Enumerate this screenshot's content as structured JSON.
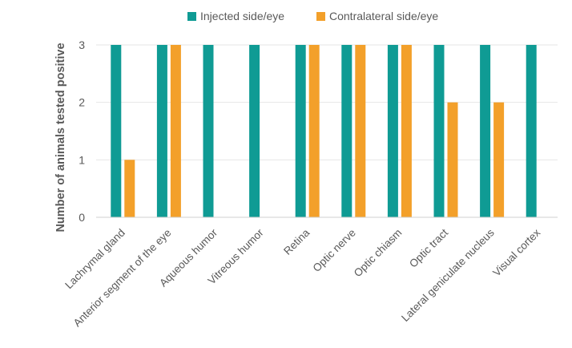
{
  "chart_data": {
    "type": "bar",
    "title": "",
    "xlabel": "",
    "ylabel": "Number of animals tested positive",
    "ylim": [
      0,
      3
    ],
    "yticks": [
      0,
      1,
      2,
      3
    ],
    "grid": true,
    "legend_position": "top-center",
    "categories": [
      "Lachrymal gland",
      "Anterior segment of the eye",
      "Aqueous humor",
      "Vitreous humor",
      "Retina",
      "Optic nerve",
      "Optic chiasm",
      "Optic tract",
      "Lateral geniculate nucleus",
      "Visual cortex"
    ],
    "series": [
      {
        "name": "Injected side/eye",
        "color": "#0f9b94",
        "values": [
          3,
          3,
          3,
          3,
          3,
          3,
          3,
          3,
          3,
          3
        ]
      },
      {
        "name": "Contralateral side/eye",
        "color": "#f3a02a",
        "values": [
          1,
          3,
          0,
          0,
          3,
          3,
          3,
          2,
          2,
          0
        ]
      }
    ]
  }
}
